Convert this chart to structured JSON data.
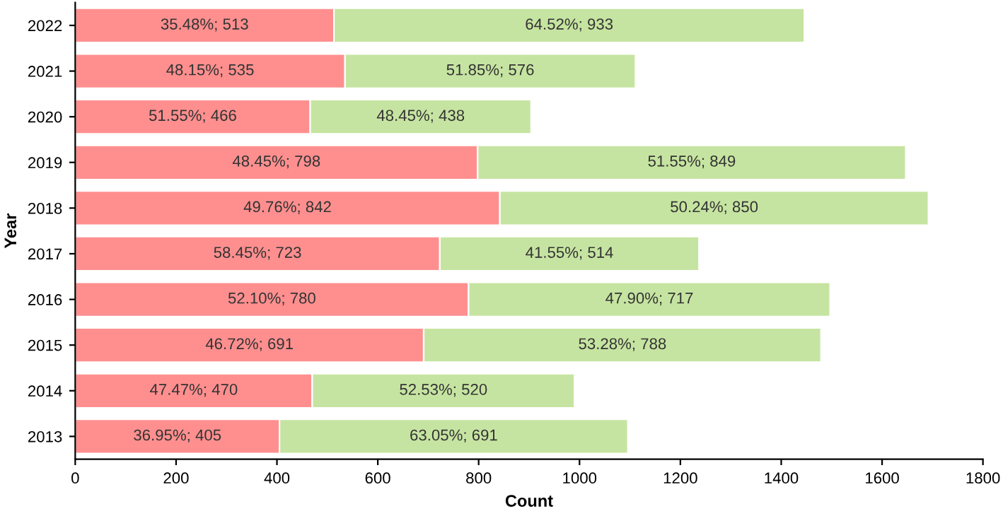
{
  "chart_data": {
    "type": "bar",
    "orientation": "horizontal",
    "stacked": true,
    "xlabel": "Count",
    "ylabel": "Year",
    "categories": [
      "2022",
      "2021",
      "2020",
      "2019",
      "2018",
      "2017",
      "2016",
      "2015",
      "2014",
      "2013"
    ],
    "series": [
      {
        "color": "#ff8f8f",
        "values": [
          513,
          535,
          466,
          798,
          842,
          723,
          780,
          691,
          470,
          405
        ],
        "value_labels": [
          "35.48%; 513",
          "48.15%; 535",
          "51.55%; 466",
          "48.45%; 798",
          "49.76%; 842",
          "58.45%; 723",
          "52.10%; 780",
          "46.72%; 691",
          "47.47%; 470",
          "36.95%; 405"
        ]
      },
      {
        "color": "#c6e4a1",
        "values": [
          933,
          576,
          438,
          849,
          850,
          514,
          717,
          788,
          520,
          691
        ],
        "value_labels": [
          "64.52%; 933",
          "51.85%; 576",
          "48.45%; 438",
          "51.55%; 849",
          "50.24%; 850",
          "41.55%; 514",
          "47.90%; 717",
          "53.28%; 788",
          "52.53%; 520",
          "63.05%; 691"
        ]
      }
    ],
    "xlim": [
      0,
      1800
    ],
    "xticks": [
      0,
      200,
      400,
      600,
      800,
      1000,
      1200,
      1400,
      1600,
      1800
    ],
    "grid": false,
    "legend": false
  }
}
